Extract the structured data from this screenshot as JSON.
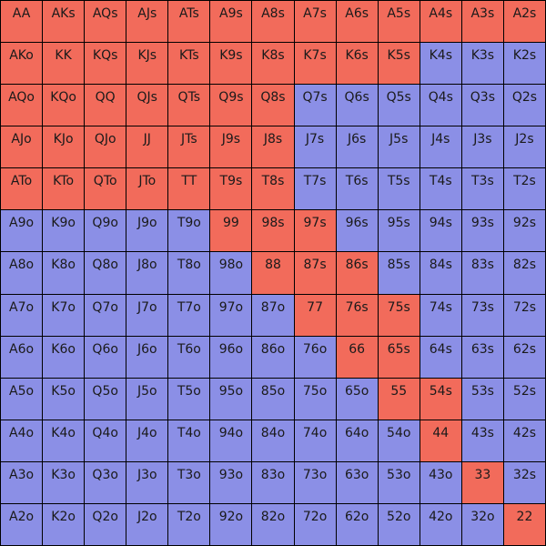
{
  "colors": {
    "red": "#f26b5b",
    "blue": "#8b8fe6",
    "grid_line": "#000000"
  },
  "grid": {
    "rows": [
      [
        {
          "label": "AA",
          "color": "red"
        },
        {
          "label": "AKs",
          "color": "red"
        },
        {
          "label": "AQs",
          "color": "red"
        },
        {
          "label": "AJs",
          "color": "red"
        },
        {
          "label": "ATs",
          "color": "red"
        },
        {
          "label": "A9s",
          "color": "red"
        },
        {
          "label": "A8s",
          "color": "red"
        },
        {
          "label": "A7s",
          "color": "red"
        },
        {
          "label": "A6s",
          "color": "red"
        },
        {
          "label": "A5s",
          "color": "red"
        },
        {
          "label": "A4s",
          "color": "red"
        },
        {
          "label": "A3s",
          "color": "red"
        },
        {
          "label": "A2s",
          "color": "red"
        }
      ],
      [
        {
          "label": "AKo",
          "color": "red"
        },
        {
          "label": "KK",
          "color": "red"
        },
        {
          "label": "KQs",
          "color": "red"
        },
        {
          "label": "KJs",
          "color": "red"
        },
        {
          "label": "KTs",
          "color": "red"
        },
        {
          "label": "K9s",
          "color": "red"
        },
        {
          "label": "K8s",
          "color": "red"
        },
        {
          "label": "K7s",
          "color": "red"
        },
        {
          "label": "K6s",
          "color": "red"
        },
        {
          "label": "K5s",
          "color": "red"
        },
        {
          "label": "K4s",
          "color": "blue"
        },
        {
          "label": "K3s",
          "color": "blue"
        },
        {
          "label": "K2s",
          "color": "blue"
        }
      ],
      [
        {
          "label": "AQo",
          "color": "red"
        },
        {
          "label": "KQo",
          "color": "red"
        },
        {
          "label": "QQ",
          "color": "red"
        },
        {
          "label": "QJs",
          "color": "red"
        },
        {
          "label": "QTs",
          "color": "red"
        },
        {
          "label": "Q9s",
          "color": "red"
        },
        {
          "label": "Q8s",
          "color": "red"
        },
        {
          "label": "Q7s",
          "color": "blue"
        },
        {
          "label": "Q6s",
          "color": "blue"
        },
        {
          "label": "Q5s",
          "color": "blue"
        },
        {
          "label": "Q4s",
          "color": "blue"
        },
        {
          "label": "Q3s",
          "color": "blue"
        },
        {
          "label": "Q2s",
          "color": "blue"
        }
      ],
      [
        {
          "label": "AJo",
          "color": "red"
        },
        {
          "label": "KJo",
          "color": "red"
        },
        {
          "label": "QJo",
          "color": "red"
        },
        {
          "label": "JJ",
          "color": "red"
        },
        {
          "label": "JTs",
          "color": "red"
        },
        {
          "label": "J9s",
          "color": "red"
        },
        {
          "label": "J8s",
          "color": "red"
        },
        {
          "label": "J7s",
          "color": "blue"
        },
        {
          "label": "J6s",
          "color": "blue"
        },
        {
          "label": "J5s",
          "color": "blue"
        },
        {
          "label": "J4s",
          "color": "blue"
        },
        {
          "label": "J3s",
          "color": "blue"
        },
        {
          "label": "J2s",
          "color": "blue"
        }
      ],
      [
        {
          "label": "ATo",
          "color": "red"
        },
        {
          "label": "KTo",
          "color": "red"
        },
        {
          "label": "QTo",
          "color": "red"
        },
        {
          "label": "JTo",
          "color": "red"
        },
        {
          "label": "TT",
          "color": "red"
        },
        {
          "label": "T9s",
          "color": "red"
        },
        {
          "label": "T8s",
          "color": "red"
        },
        {
          "label": "T7s",
          "color": "blue"
        },
        {
          "label": "T6s",
          "color": "blue"
        },
        {
          "label": "T5s",
          "color": "blue"
        },
        {
          "label": "T4s",
          "color": "blue"
        },
        {
          "label": "T3s",
          "color": "blue"
        },
        {
          "label": "T2s",
          "color": "blue"
        }
      ],
      [
        {
          "label": "A9o",
          "color": "blue"
        },
        {
          "label": "K9o",
          "color": "blue"
        },
        {
          "label": "Q9o",
          "color": "blue"
        },
        {
          "label": "J9o",
          "color": "blue"
        },
        {
          "label": "T9o",
          "color": "blue"
        },
        {
          "label": "99",
          "color": "red"
        },
        {
          "label": "98s",
          "color": "red"
        },
        {
          "label": "97s",
          "color": "red"
        },
        {
          "label": "96s",
          "color": "blue"
        },
        {
          "label": "95s",
          "color": "blue"
        },
        {
          "label": "94s",
          "color": "blue"
        },
        {
          "label": "93s",
          "color": "blue"
        },
        {
          "label": "92s",
          "color": "blue"
        }
      ],
      [
        {
          "label": "A8o",
          "color": "blue"
        },
        {
          "label": "K8o",
          "color": "blue"
        },
        {
          "label": "Q8o",
          "color": "blue"
        },
        {
          "label": "J8o",
          "color": "blue"
        },
        {
          "label": "T8o",
          "color": "blue"
        },
        {
          "label": "98o",
          "color": "blue"
        },
        {
          "label": "88",
          "color": "red"
        },
        {
          "label": "87s",
          "color": "red"
        },
        {
          "label": "86s",
          "color": "red"
        },
        {
          "label": "85s",
          "color": "blue"
        },
        {
          "label": "84s",
          "color": "blue"
        },
        {
          "label": "83s",
          "color": "blue"
        },
        {
          "label": "82s",
          "color": "blue"
        }
      ],
      [
        {
          "label": "A7o",
          "color": "blue"
        },
        {
          "label": "K7o",
          "color": "blue"
        },
        {
          "label": "Q7o",
          "color": "blue"
        },
        {
          "label": "J7o",
          "color": "blue"
        },
        {
          "label": "T7o",
          "color": "blue"
        },
        {
          "label": "97o",
          "color": "blue"
        },
        {
          "label": "87o",
          "color": "blue"
        },
        {
          "label": "77",
          "color": "red"
        },
        {
          "label": "76s",
          "color": "red"
        },
        {
          "label": "75s",
          "color": "red"
        },
        {
          "label": "74s",
          "color": "blue"
        },
        {
          "label": "73s",
          "color": "blue"
        },
        {
          "label": "72s",
          "color": "blue"
        }
      ],
      [
        {
          "label": "A6o",
          "color": "blue"
        },
        {
          "label": "K6o",
          "color": "blue"
        },
        {
          "label": "Q6o",
          "color": "blue"
        },
        {
          "label": "J6o",
          "color": "blue"
        },
        {
          "label": "T6o",
          "color": "blue"
        },
        {
          "label": "96o",
          "color": "blue"
        },
        {
          "label": "86o",
          "color": "blue"
        },
        {
          "label": "76o",
          "color": "blue"
        },
        {
          "label": "66",
          "color": "red"
        },
        {
          "label": "65s",
          "color": "red"
        },
        {
          "label": "64s",
          "color": "blue"
        },
        {
          "label": "63s",
          "color": "blue"
        },
        {
          "label": "62s",
          "color": "blue"
        }
      ],
      [
        {
          "label": "A5o",
          "color": "blue"
        },
        {
          "label": "K5o",
          "color": "blue"
        },
        {
          "label": "Q5o",
          "color": "blue"
        },
        {
          "label": "J5o",
          "color": "blue"
        },
        {
          "label": "T5o",
          "color": "blue"
        },
        {
          "label": "95o",
          "color": "blue"
        },
        {
          "label": "85o",
          "color": "blue"
        },
        {
          "label": "75o",
          "color": "blue"
        },
        {
          "label": "65o",
          "color": "blue"
        },
        {
          "label": "55",
          "color": "red"
        },
        {
          "label": "54s",
          "color": "red"
        },
        {
          "label": "53s",
          "color": "blue"
        },
        {
          "label": "52s",
          "color": "blue"
        }
      ],
      [
        {
          "label": "A4o",
          "color": "blue"
        },
        {
          "label": "K4o",
          "color": "blue"
        },
        {
          "label": "Q4o",
          "color": "blue"
        },
        {
          "label": "J4o",
          "color": "blue"
        },
        {
          "label": "T4o",
          "color": "blue"
        },
        {
          "label": "94o",
          "color": "blue"
        },
        {
          "label": "84o",
          "color": "blue"
        },
        {
          "label": "74o",
          "color": "blue"
        },
        {
          "label": "64o",
          "color": "blue"
        },
        {
          "label": "54o",
          "color": "blue"
        },
        {
          "label": "44",
          "color": "red"
        },
        {
          "label": "43s",
          "color": "blue"
        },
        {
          "label": "42s",
          "color": "blue"
        }
      ],
      [
        {
          "label": "A3o",
          "color": "blue"
        },
        {
          "label": "K3o",
          "color": "blue"
        },
        {
          "label": "Q3o",
          "color": "blue"
        },
        {
          "label": "J3o",
          "color": "blue"
        },
        {
          "label": "T3o",
          "color": "blue"
        },
        {
          "label": "93o",
          "color": "blue"
        },
        {
          "label": "83o",
          "color": "blue"
        },
        {
          "label": "73o",
          "color": "blue"
        },
        {
          "label": "63o",
          "color": "blue"
        },
        {
          "label": "53o",
          "color": "blue"
        },
        {
          "label": "43o",
          "color": "blue"
        },
        {
          "label": "33",
          "color": "red"
        },
        {
          "label": "32s",
          "color": "blue"
        }
      ],
      [
        {
          "label": "A2o",
          "color": "blue"
        },
        {
          "label": "K2o",
          "color": "blue"
        },
        {
          "label": "Q2o",
          "color": "blue"
        },
        {
          "label": "J2o",
          "color": "blue"
        },
        {
          "label": "T2o",
          "color": "blue"
        },
        {
          "label": "92o",
          "color": "blue"
        },
        {
          "label": "82o",
          "color": "blue"
        },
        {
          "label": "72o",
          "color": "blue"
        },
        {
          "label": "62o",
          "color": "blue"
        },
        {
          "label": "52o",
          "color": "blue"
        },
        {
          "label": "42o",
          "color": "blue"
        },
        {
          "label": "32o",
          "color": "blue"
        },
        {
          "label": "22",
          "color": "red"
        }
      ]
    ]
  }
}
